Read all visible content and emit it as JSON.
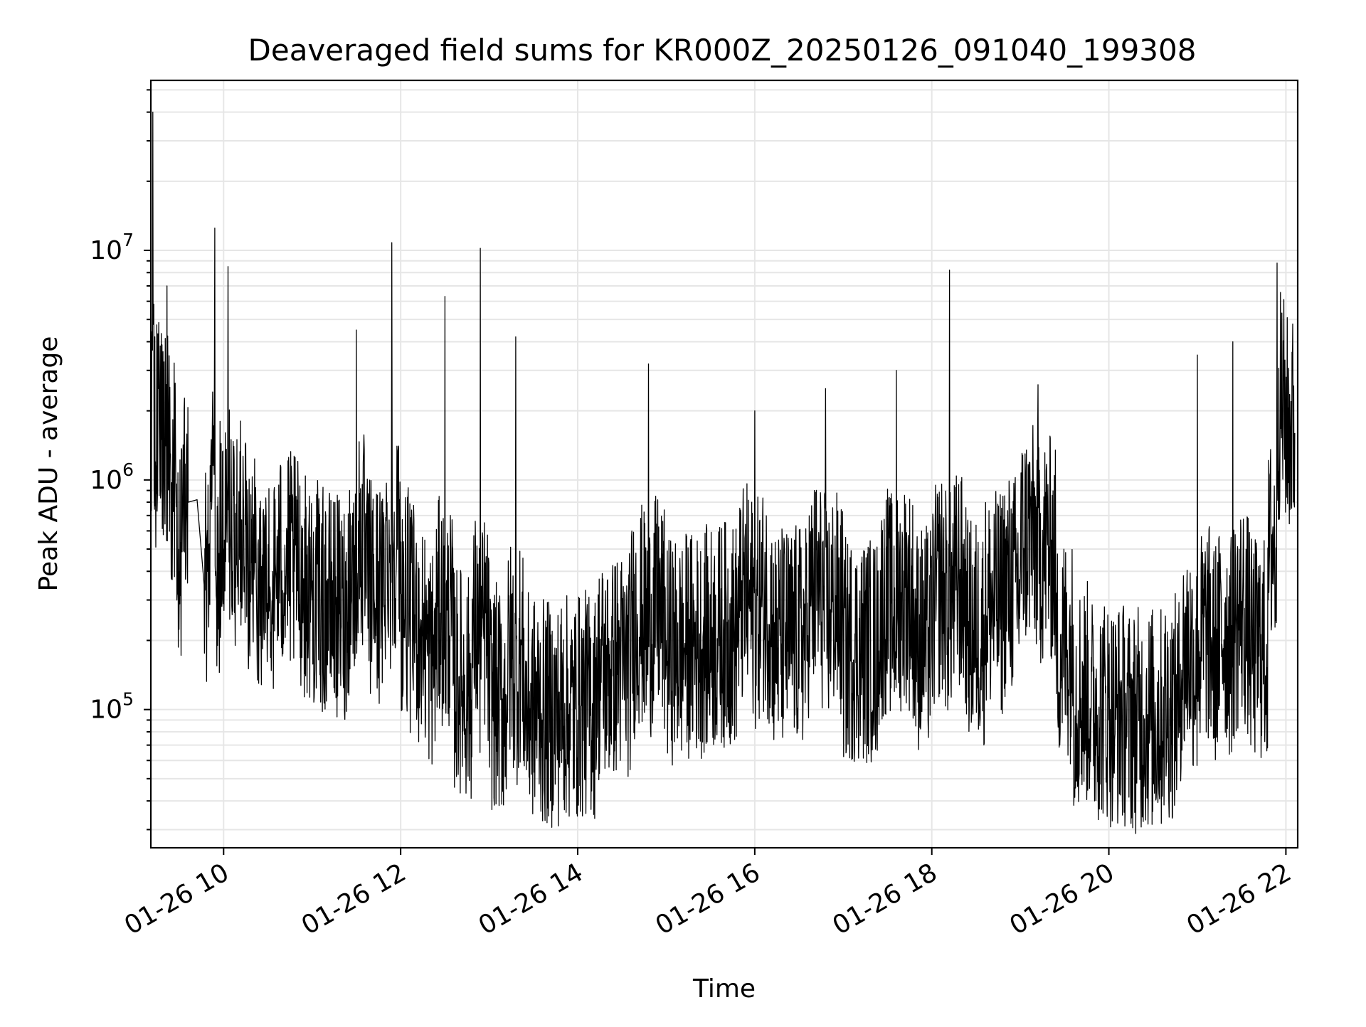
{
  "chart_data": {
    "type": "line",
    "title": "Deaveraged field sums for KR000Z_20250126_091040_199308",
    "xlabel": "Time",
    "ylabel": "Peak ADU - average",
    "x_axis": {
      "kind": "time",
      "start": "2025-01-26 09:10:40",
      "end": "2025-01-26 22:08:00",
      "ticks": [
        "01-26 10",
        "01-26 12",
        "01-26 14",
        "01-26 16",
        "01-26 18",
        "01-26 20",
        "01-26 22"
      ],
      "tick_hours": [
        10,
        12,
        14,
        16,
        18,
        20,
        22
      ]
    },
    "y_axis": {
      "scale": "log",
      "ylim": [
        25000,
        55000000
      ],
      "major_ticks": [
        100000,
        1000000,
        10000000
      ],
      "major_tick_labels": [
        {
          "base": "10",
          "exp": "5"
        },
        {
          "base": "10",
          "exp": "6"
        },
        {
          "base": "10",
          "exp": "7"
        }
      ]
    },
    "grid": true,
    "line_color": "#000000",
    "grid_color": "#e6e6e6",
    "series": [
      {
        "x_hours": [
          9.18,
          9.2,
          9.23,
          9.26,
          9.3,
          9.33,
          9.36,
          9.4,
          9.43,
          9.46,
          9.5,
          9.55,
          9.6,
          9.7,
          9.78,
          9.82,
          9.86,
          9.9,
          9.92,
          9.96,
          10.0,
          10.05,
          10.1,
          10.15,
          10.2,
          10.3,
          10.4,
          10.5,
          10.6,
          10.7,
          10.8,
          10.9,
          11.0,
          11.1,
          11.2,
          11.3,
          11.4,
          11.5,
          11.6,
          11.7,
          11.8,
          11.9,
          12.0,
          12.1,
          12.2,
          12.3,
          12.4,
          12.5,
          12.6,
          12.7,
          12.8,
          12.9,
          13.0,
          13.1,
          13.2,
          13.3,
          13.4,
          13.5,
          13.6,
          13.7,
          13.8,
          13.9,
          14.0,
          14.2,
          14.4,
          14.6,
          14.8,
          15.0,
          15.2,
          15.4,
          15.6,
          15.8,
          16.0,
          16.2,
          16.4,
          16.6,
          16.8,
          17.0,
          17.2,
          17.4,
          17.6,
          17.8,
          18.0,
          18.2,
          18.4,
          18.6,
          18.8,
          19.0,
          19.2,
          19.4,
          19.6,
          19.8,
          20.0,
          20.2,
          20.4,
          20.6,
          20.8,
          21.0,
          21.2,
          21.4,
          21.6,
          21.8,
          21.9,
          22.0,
          22.1
        ],
        "values": [
          1000000,
          40000000,
          1200000,
          2500000,
          1500000,
          1100000,
          7000000,
          1300000,
          900000,
          1000000,
          400000,
          800000,
          800000,
          820000,
          350000,
          400000,
          1500000,
          12500000,
          300000,
          1800000,
          500000,
          8500000,
          400000,
          1500000,
          500000,
          400000,
          350000,
          300000,
          420000,
          380000,
          400000,
          350000,
          300000,
          280000,
          260000,
          250000,
          240000,
          4500000,
          350000,
          300000,
          280000,
          10800000,
          320000,
          260000,
          220000,
          180000,
          150000,
          6300000,
          130000,
          120000,
          110000,
          10200000,
          110000,
          100000,
          95000,
          4200000,
          90000,
          100000,
          90000,
          85000,
          90000,
          95000,
          90000,
          130000,
          140000,
          150000,
          3200000,
          160000,
          170000,
          180000,
          190000,
          200000,
          2000000,
          190000,
          180000,
          210000,
          2500000,
          180000,
          160000,
          180000,
          3000000,
          200000,
          180000,
          8200000,
          190000,
          250000,
          300000,
          400000,
          2600000,
          350000,
          150000,
          100000,
          90000,
          85000,
          80000,
          90000,
          100000,
          3500000,
          120000,
          4000000,
          150000,
          300000,
          8800000,
          1500000,
          1600000
        ]
      }
    ]
  }
}
